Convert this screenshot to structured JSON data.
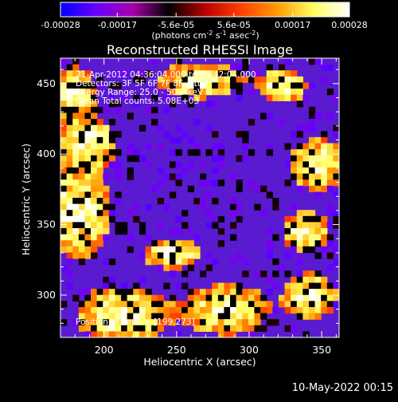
{
  "colorbar": {
    "tick_labels": [
      "-0.00028",
      "-0.00017",
      "-5.6e-05",
      "5.6e-05",
      "0.00017",
      "0.00028"
    ],
    "units_prefix": "(photons cm",
    "units_exp1": "-2",
    "units_mid": " s",
    "units_exp2": "-1",
    "units_suffix": " asec",
    "units_exp3": "-2",
    "units_close": ")",
    "range": [
      -0.00028,
      0.00028
    ],
    "gradient_colors": [
      "#0000ff",
      "#6a00ff",
      "#a800a8",
      "#000000",
      "#b80000",
      "#ff4000",
      "#ff9a00",
      "#ffff60",
      "#ffffff"
    ]
  },
  "chart_data": {
    "type": "heatmap",
    "title": "Reconstructed RHESSI Image",
    "xlabel": "Heliocentric X (arcsec)",
    "ylabel": "Heliocentric Y (arcsec)",
    "xlim": [
      170,
      362
    ],
    "ylim": [
      270,
      468
    ],
    "xticks": [
      200,
      250,
      300,
      350
    ],
    "yticks": [
      300,
      350,
      400,
      450
    ],
    "annotations": [
      "21-Apr-2012 04:36:04.000 to 04:42:04.000",
      "Detectors: 3F 5F 6F 7F 8F, Att 0",
      "Energy Range: 25.0 - 50.0 keV",
      "Clean     Total counts: 5.08E+03"
    ],
    "peak_label": "Position of Peak = [199,273]",
    "peak": [
      199,
      273
    ],
    "background_color": "#5a1ad0"
  },
  "footer": {
    "timestamp": "10-May-2022 00:15"
  }
}
